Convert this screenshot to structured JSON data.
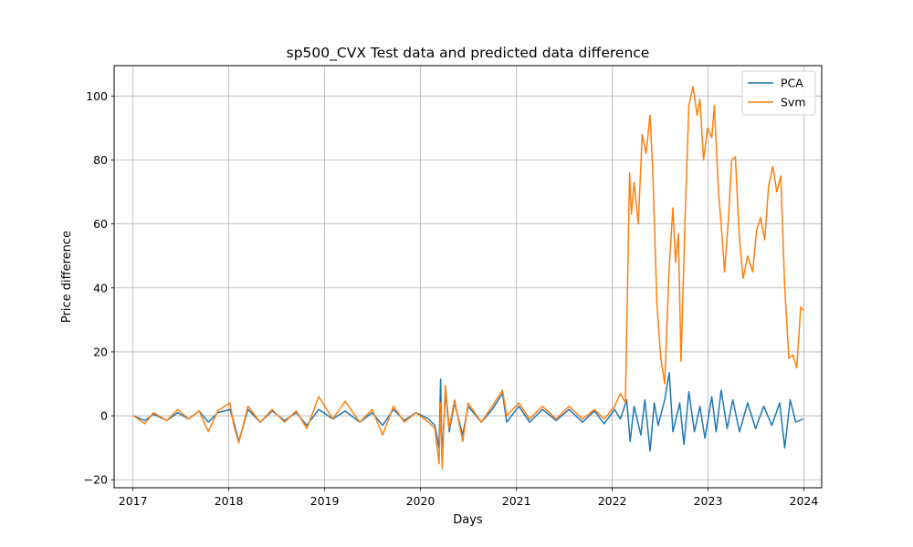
{
  "chart_data": {
    "type": "line",
    "title": "sp500_CVX Test data and predicted data difference",
    "xlabel": "Days",
    "ylabel": "Price difference",
    "x_is_date": true,
    "xlim": [
      "2016-10-21",
      "2024-03-09"
    ],
    "ylim": [
      -22.5,
      109.5
    ],
    "x_ticks": [
      "2017-01-01",
      "2018-01-01",
      "2019-01-01",
      "2020-01-01",
      "2021-01-01",
      "2022-01-01",
      "2023-01-01",
      "2024-01-01"
    ],
    "x_tick_labels": [
      "2017",
      "2018",
      "2019",
      "2020",
      "2021",
      "2022",
      "2023",
      "2024"
    ],
    "y_ticks": [
      -20,
      0,
      20,
      40,
      60,
      80,
      100
    ],
    "y_tick_labels": [
      "−20",
      "0",
      "20",
      "40",
      "60",
      "80",
      "100"
    ],
    "grid": true,
    "legend": "top-right",
    "series": [
      {
        "name": "PCA",
        "color": "#1f77b4",
        "points": [
          [
            "2017-01-03",
            0
          ],
          [
            "2017-02-15",
            -1.5
          ],
          [
            "2017-03-20",
            0.5
          ],
          [
            "2017-05-10",
            -1.5
          ],
          [
            "2017-06-20",
            1
          ],
          [
            "2017-08-01",
            -1
          ],
          [
            "2017-09-10",
            1.5
          ],
          [
            "2017-10-15",
            -2
          ],
          [
            "2017-11-20",
            1
          ],
          [
            "2018-01-05",
            2
          ],
          [
            "2018-01-20",
            -2
          ],
          [
            "2018-02-08",
            -8
          ],
          [
            "2018-03-15",
            2
          ],
          [
            "2018-05-01",
            -2
          ],
          [
            "2018-06-15",
            1.5
          ],
          [
            "2018-08-01",
            -1.5
          ],
          [
            "2018-09-15",
            1
          ],
          [
            "2018-10-25",
            -3
          ],
          [
            "2018-12-10",
            2
          ],
          [
            "2019-02-01",
            -1
          ],
          [
            "2019-03-20",
            1.5
          ],
          [
            "2019-05-15",
            -2
          ],
          [
            "2019-07-01",
            1
          ],
          [
            "2019-08-10",
            -3
          ],
          [
            "2019-09-20",
            2
          ],
          [
            "2019-11-01",
            -1.5
          ],
          [
            "2019-12-15",
            1
          ],
          [
            "2020-02-01",
            -1
          ],
          [
            "2020-02-25",
            -3
          ],
          [
            "2020-03-12",
            -10
          ],
          [
            "2020-03-18",
            11.5
          ],
          [
            "2020-03-24",
            -14
          ],
          [
            "2020-04-05",
            8
          ],
          [
            "2020-04-20",
            -5
          ],
          [
            "2020-05-10",
            4
          ],
          [
            "2020-06-10",
            -6
          ],
          [
            "2020-07-01",
            3
          ],
          [
            "2020-08-20",
            -2
          ],
          [
            "2020-10-01",
            2
          ],
          [
            "2020-11-09",
            7
          ],
          [
            "2020-11-25",
            -2
          ],
          [
            "2021-01-10",
            3
          ],
          [
            "2021-02-20",
            -2
          ],
          [
            "2021-04-10",
            2
          ],
          [
            "2021-06-01",
            -1.5
          ],
          [
            "2021-07-20",
            2
          ],
          [
            "2021-09-10",
            -2
          ],
          [
            "2021-10-25",
            1.5
          ],
          [
            "2021-12-01",
            -2.5
          ],
          [
            "2022-01-10",
            2
          ],
          [
            "2022-02-01",
            -1
          ],
          [
            "2022-02-25",
            5
          ],
          [
            "2022-03-10",
            -8
          ],
          [
            "2022-03-25",
            3
          ],
          [
            "2022-04-20",
            -6
          ],
          [
            "2022-05-05",
            5
          ],
          [
            "2022-05-25",
            -11
          ],
          [
            "2022-06-10",
            4
          ],
          [
            "2022-06-25",
            -3
          ],
          [
            "2022-07-20",
            5
          ],
          [
            "2022-08-06",
            13.5
          ],
          [
            "2022-08-20",
            -5
          ],
          [
            "2022-09-15",
            4
          ],
          [
            "2022-10-01",
            -9
          ],
          [
            "2022-10-20",
            7.5
          ],
          [
            "2022-11-10",
            -5
          ],
          [
            "2022-12-01",
            3
          ],
          [
            "2022-12-20",
            -7
          ],
          [
            "2023-01-15",
            6
          ],
          [
            "2023-02-01",
            -5
          ],
          [
            "2023-02-20",
            8
          ],
          [
            "2023-03-15",
            -4
          ],
          [
            "2023-04-05",
            5
          ],
          [
            "2023-05-01",
            -5
          ],
          [
            "2023-06-01",
            4
          ],
          [
            "2023-07-01",
            -4
          ],
          [
            "2023-08-01",
            3
          ],
          [
            "2023-09-01",
            -3
          ],
          [
            "2023-10-01",
            4
          ],
          [
            "2023-10-20",
            -10
          ],
          [
            "2023-11-10",
            5
          ],
          [
            "2023-12-01",
            -2
          ],
          [
            "2023-12-29",
            -1
          ]
        ]
      },
      {
        "name": "Svm",
        "color": "#ff7f0e",
        "points": [
          [
            "2017-01-03",
            0
          ],
          [
            "2017-02-15",
            -2.5
          ],
          [
            "2017-03-20",
            1
          ],
          [
            "2017-05-10",
            -1.5
          ],
          [
            "2017-06-20",
            2
          ],
          [
            "2017-08-01",
            -1
          ],
          [
            "2017-09-10",
            1.5
          ],
          [
            "2017-10-15",
            -5
          ],
          [
            "2017-11-20",
            1.5
          ],
          [
            "2018-01-05",
            4
          ],
          [
            "2018-01-20",
            -3
          ],
          [
            "2018-02-08",
            -8.5
          ],
          [
            "2018-03-15",
            3
          ],
          [
            "2018-05-01",
            -2
          ],
          [
            "2018-06-15",
            2
          ],
          [
            "2018-08-01",
            -2
          ],
          [
            "2018-09-15",
            1.5
          ],
          [
            "2018-10-25",
            -4
          ],
          [
            "2018-12-10",
            6
          ],
          [
            "2019-02-01",
            -1
          ],
          [
            "2019-03-20",
            4.5
          ],
          [
            "2019-05-15",
            -2
          ],
          [
            "2019-07-01",
            2
          ],
          [
            "2019-08-10",
            -6
          ],
          [
            "2019-09-20",
            3
          ],
          [
            "2019-11-01",
            -2
          ],
          [
            "2019-12-15",
            1
          ],
          [
            "2020-02-01",
            -2
          ],
          [
            "2020-02-25",
            -4
          ],
          [
            "2020-03-12",
            -15
          ],
          [
            "2020-03-18",
            4
          ],
          [
            "2020-03-24",
            -16.5
          ],
          [
            "2020-04-05",
            9.5
          ],
          [
            "2020-04-20",
            -4
          ],
          [
            "2020-05-10",
            5
          ],
          [
            "2020-06-10",
            -8
          ],
          [
            "2020-07-01",
            4
          ],
          [
            "2020-08-20",
            -2
          ],
          [
            "2020-10-01",
            3
          ],
          [
            "2020-11-09",
            8
          ],
          [
            "2020-11-25",
            0
          ],
          [
            "2021-01-10",
            4
          ],
          [
            "2021-02-20",
            -1
          ],
          [
            "2021-04-10",
            3
          ],
          [
            "2021-06-01",
            -1
          ],
          [
            "2021-07-20",
            3
          ],
          [
            "2021-09-10",
            -1
          ],
          [
            "2021-10-25",
            2
          ],
          [
            "2021-12-01",
            -1
          ],
          [
            "2022-01-10",
            3
          ],
          [
            "2022-02-01",
            7
          ],
          [
            "2022-02-20",
            4
          ],
          [
            "2022-03-08",
            76
          ],
          [
            "2022-03-15",
            63
          ],
          [
            "2022-03-25",
            73
          ],
          [
            "2022-04-10",
            60
          ],
          [
            "2022-04-25",
            88
          ],
          [
            "2022-05-10",
            82
          ],
          [
            "2022-05-25",
            94
          ],
          [
            "2022-06-05",
            75
          ],
          [
            "2022-06-20",
            35
          ],
          [
            "2022-07-05",
            18
          ],
          [
            "2022-07-20",
            10
          ],
          [
            "2022-08-05",
            45
          ],
          [
            "2022-08-20",
            65
          ],
          [
            "2022-08-30",
            48
          ],
          [
            "2022-09-10",
            57
          ],
          [
            "2022-09-20",
            17
          ],
          [
            "2022-10-05",
            60
          ],
          [
            "2022-10-20",
            97
          ],
          [
            "2022-11-05",
            103
          ],
          [
            "2022-11-20",
            94
          ],
          [
            "2022-12-01",
            99
          ],
          [
            "2022-12-15",
            80
          ],
          [
            "2022-12-30",
            90
          ],
          [
            "2023-01-15",
            87
          ],
          [
            "2023-01-25",
            97
          ],
          [
            "2023-02-10",
            70
          ],
          [
            "2023-02-20",
            60
          ],
          [
            "2023-03-05",
            45
          ],
          [
            "2023-03-20",
            62
          ],
          [
            "2023-04-01",
            80
          ],
          [
            "2023-04-15",
            81
          ],
          [
            "2023-05-01",
            55
          ],
          [
            "2023-05-15",
            43
          ],
          [
            "2023-06-01",
            50
          ],
          [
            "2023-06-20",
            45
          ],
          [
            "2023-07-05",
            58
          ],
          [
            "2023-07-20",
            62
          ],
          [
            "2023-08-05",
            55
          ],
          [
            "2023-08-20",
            72
          ],
          [
            "2023-09-05",
            78
          ],
          [
            "2023-09-20",
            70
          ],
          [
            "2023-10-05",
            75
          ],
          [
            "2023-10-20",
            40
          ],
          [
            "2023-11-05",
            18
          ],
          [
            "2023-11-20",
            19
          ],
          [
            "2023-12-05",
            15
          ],
          [
            "2023-12-20",
            34
          ],
          [
            "2023-12-29",
            33
          ]
        ]
      }
    ]
  }
}
